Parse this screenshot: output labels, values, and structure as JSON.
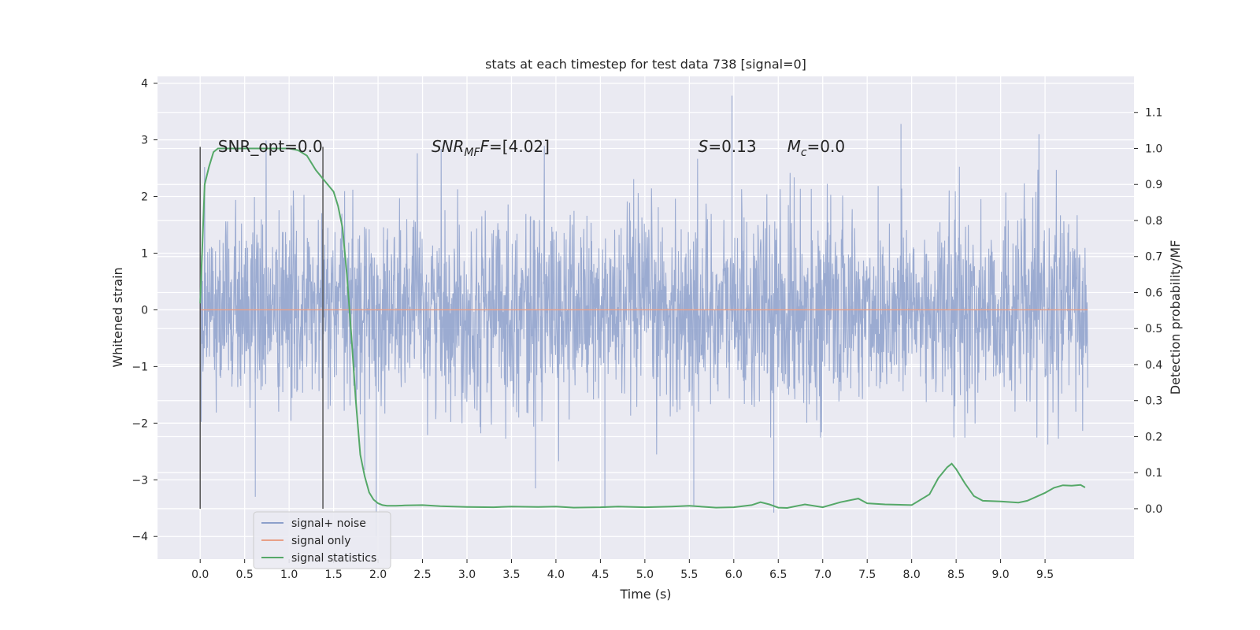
{
  "chart_data": {
    "type": "line",
    "title": "stats at each timestep for test data 738 [signal=0]",
    "xlabel": "Time (s)",
    "ylabel": "Whitened strain",
    "y2label": "Detection probability/MF",
    "xlim": [
      -0.48,
      10.5
    ],
    "ylim": [
      -4.4,
      4.12
    ],
    "y2lim": [
      -0.14,
      1.2
    ],
    "xticks": [
      "0.0",
      "0.5",
      "1.0",
      "1.5",
      "2.0",
      "2.5",
      "3.0",
      "3.5",
      "4.0",
      "4.5",
      "5.0",
      "5.5",
      "6.0",
      "6.5",
      "7.0",
      "7.5",
      "8.0",
      "8.5",
      "9.0",
      "9.5"
    ],
    "yticks": [
      "4",
      "3",
      "2",
      "1",
      "0",
      "−1",
      "−2",
      "−3",
      "−4"
    ],
    "y2ticks": [
      "1.1",
      "1.0",
      "0.9",
      "0.8",
      "0.7",
      "0.6",
      "0.5",
      "0.4",
      "0.3",
      "0.2",
      "0.1",
      "0.0"
    ],
    "grid": true,
    "legend_position": "lower-left",
    "colors": {
      "background": "#eaeaf2",
      "grid": "#ffffff",
      "noise": "#8da0cb",
      "signal_only": "#e8a087",
      "statistics": "#55a868",
      "markers": "#555555"
    },
    "series": [
      {
        "name": "signal+ noise",
        "axis": "left",
        "style": "dense-noise",
        "x_range": [
          0.0,
          9.98
        ],
        "typical_envelope": [
          -1.5,
          1.8
        ],
        "extremes": [
          {
            "x": 0.62,
            "y": -3.3
          },
          {
            "x": 1.98,
            "y": -4.0
          },
          {
            "x": 4.55,
            "y": -3.5
          },
          {
            "x": 5.98,
            "y": 3.78
          },
          {
            "x": 6.45,
            "y": -3.58
          },
          {
            "x": 7.88,
            "y": 3.28
          },
          {
            "x": 5.55,
            "y": -3.45
          },
          {
            "x": 3.77,
            "y": -3.15
          }
        ]
      },
      {
        "name": "signal only",
        "axis": "left",
        "x": [
          0.0,
          9.98
        ],
        "y": [
          0.0,
          0.0
        ]
      },
      {
        "name": "signal statistics",
        "axis": "right",
        "x": [
          0.0,
          0.05,
          0.1,
          0.15,
          0.2,
          0.3,
          0.5,
          0.7,
          0.9,
          1.0,
          1.1,
          1.2,
          1.3,
          1.4,
          1.5,
          1.55,
          1.6,
          1.65,
          1.7,
          1.75,
          1.8,
          1.85,
          1.9,
          1.95,
          2.0,
          2.05,
          2.1,
          2.2,
          2.3,
          2.5,
          2.7,
          3.0,
          3.3,
          3.5,
          3.8,
          4.0,
          4.2,
          4.5,
          4.7,
          5.0,
          5.3,
          5.5,
          5.8,
          6.0,
          6.2,
          6.3,
          6.4,
          6.5,
          6.6,
          6.8,
          7.0,
          7.2,
          7.4,
          7.5,
          7.7,
          8.0,
          8.2,
          8.3,
          8.4,
          8.45,
          8.5,
          8.6,
          8.7,
          8.8,
          9.0,
          9.2,
          9.3,
          9.5,
          9.6,
          9.7,
          9.8,
          9.9,
          9.95
        ],
        "y": [
          0.57,
          0.9,
          0.95,
          0.99,
          1.0,
          1.0,
          1.0,
          1.0,
          1.0,
          1.0,
          0.995,
          0.98,
          0.94,
          0.91,
          0.88,
          0.84,
          0.78,
          0.65,
          0.48,
          0.3,
          0.15,
          0.09,
          0.045,
          0.025,
          0.015,
          0.01,
          0.008,
          0.008,
          0.009,
          0.01,
          0.007,
          0.005,
          0.004,
          0.006,
          0.005,
          0.006,
          0.003,
          0.004,
          0.006,
          0.004,
          0.006,
          0.008,
          0.003,
          0.004,
          0.01,
          0.018,
          0.012,
          0.003,
          0.002,
          0.012,
          0.004,
          0.018,
          0.028,
          0.015,
          0.012,
          0.01,
          0.04,
          0.085,
          0.115,
          0.125,
          0.11,
          0.07,
          0.035,
          0.022,
          0.02,
          0.017,
          0.022,
          0.044,
          0.058,
          0.065,
          0.064,
          0.066,
          0.059
        ]
      }
    ],
    "vertical_markers": [
      0.0,
      1.38
    ],
    "annotations": [
      {
        "text": "SNR_opt=0.0",
        "x": 0.2,
        "y2": 0.99
      },
      {
        "text": "SNR",
        "sub": "MF",
        "after": "=[4.02]",
        "x": 2.6,
        "y2": 0.99,
        "italic_part": "SNR",
        "italic_after_prefix": "F"
      },
      {
        "text": "S=0.13",
        "x": 5.6,
        "y2": 0.99
      },
      {
        "text": "M",
        "sub": "c",
        "after": "=0.0",
        "x": 6.6,
        "y2": 0.99
      }
    ]
  }
}
